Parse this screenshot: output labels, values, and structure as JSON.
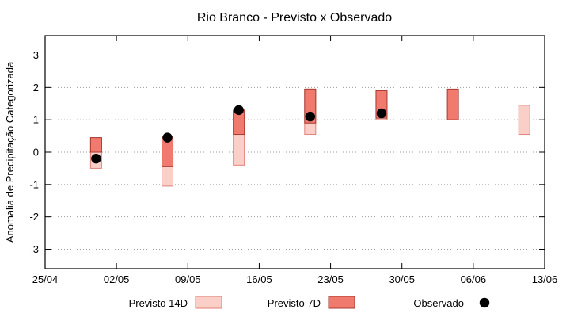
{
  "chart_data": {
    "type": "bar",
    "title": "Rio Branco - Previsto x Observado",
    "ylabel": "Anomalia de Precipitação Categorizada",
    "xlabel": "",
    "ylim": [
      -3.6,
      3.6
    ],
    "yticks": [
      -3,
      -2,
      -1,
      0,
      1,
      2,
      3
    ],
    "xtick_labels": [
      "25/04",
      "02/05",
      "09/05",
      "16/05",
      "23/05",
      "30/05",
      "06/06",
      "13/06"
    ],
    "xtick_days": [
      0,
      7,
      14,
      21,
      28,
      35,
      42,
      49
    ],
    "x_range_days": [
      0,
      49
    ],
    "grid": "horizontal-dotted",
    "legend_position": "bottom-center",
    "colors": {
      "previsto14d_fill": "#f9cfc7",
      "previsto14d_border": "#e0837a",
      "previsto7d_fill": "#f07a6d",
      "previsto7d_border": "#a83a32",
      "observado_fill": "#000000",
      "grid": "#9a9a9a",
      "axis": "#000000"
    },
    "series": [
      {
        "name": "Previsto 14D",
        "kind": "range-bar",
        "bars": [
          {
            "day": 5,
            "low": -0.5,
            "high": 0.45
          },
          {
            "day": 12,
            "low": -1.05,
            "high": 0.5
          },
          {
            "day": 19,
            "low": -0.4,
            "high": 1.3
          },
          {
            "day": 26,
            "low": 0.55,
            "high": 1.95
          },
          {
            "day": 33,
            "low": 1.0,
            "high": 1.9
          },
          {
            "day": 47,
            "low": 0.55,
            "high": 1.45
          }
        ]
      },
      {
        "name": "Previsto 7D",
        "kind": "range-bar",
        "bars": [
          {
            "day": 5,
            "low": 0.0,
            "high": 0.45
          },
          {
            "day": 12,
            "low": -0.45,
            "high": 0.5
          },
          {
            "day": 19,
            "low": 0.55,
            "high": 1.3
          },
          {
            "day": 26,
            "low": 0.9,
            "high": 1.95
          },
          {
            "day": 33,
            "low": 1.05,
            "high": 1.9
          },
          {
            "day": 40,
            "low": 1.0,
            "high": 1.95
          }
        ]
      },
      {
        "name": "Observado",
        "kind": "points",
        "points": [
          {
            "day": 5,
            "value": -0.2
          },
          {
            "day": 12,
            "value": 0.45
          },
          {
            "day": 19,
            "value": 1.3
          },
          {
            "day": 26,
            "value": 1.1
          },
          {
            "day": 33,
            "value": 1.2
          }
        ]
      }
    ]
  }
}
